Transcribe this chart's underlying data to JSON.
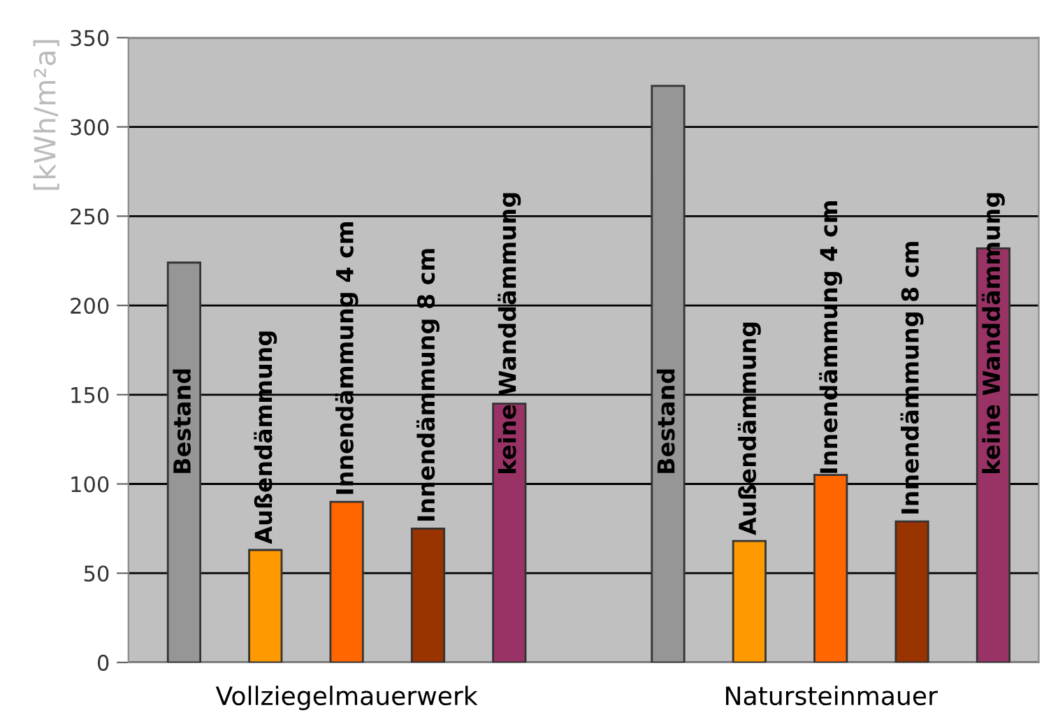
{
  "chart_data": {
    "type": "bar",
    "ylabel": "[kWh/m²a]",
    "categories": [
      "Vollziegelmauerwerk",
      "Natursteinmauer"
    ],
    "series": [
      {
        "name": "Bestand",
        "color": "#969696",
        "values": [
          224,
          323
        ]
      },
      {
        "name": "Außendämmung",
        "color": "#ff9900",
        "values": [
          63,
          68
        ]
      },
      {
        "name": "Innendämmung 4 cm",
        "color": "#ff6600",
        "values": [
          90,
          105
        ]
      },
      {
        "name": "Innendämmung 8 cm",
        "color": "#993300",
        "values": [
          75,
          79
        ]
      },
      {
        "name": "keine Wanddämmung",
        "color": "#993366",
        "values": [
          145,
          232
        ]
      }
    ],
    "ylim": [
      0,
      350
    ],
    "yticks": [
      0,
      50,
      100,
      150,
      200,
      250,
      300,
      350
    ],
    "grid": "y",
    "legend": false
  }
}
